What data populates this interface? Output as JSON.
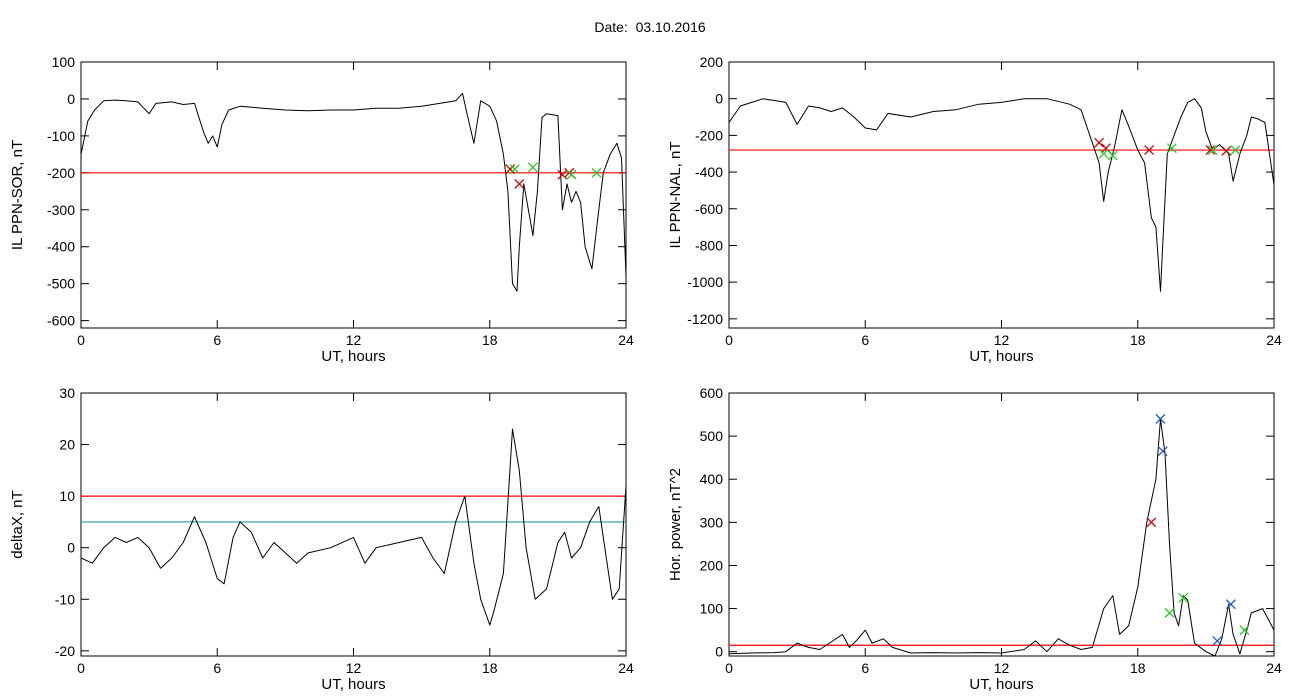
{
  "title": "Date:  03.10.2016",
  "colors": {
    "data": "#000000",
    "threshold": "#ff0000",
    "threshold2": "#2a9bb0",
    "event": "#0044cc",
    "marker_red": "#cc0000",
    "marker_green": "#22cc22",
    "marker_blue": "#2255cc"
  },
  "chart_data": [
    {
      "type": "line",
      "xlabel": "UT, hours",
      "ylabel": "IL PPN-SOR, nT",
      "xlim": [
        0,
        24
      ],
      "ylim": [
        -620,
        100
      ],
      "xticks": [
        0,
        6,
        12,
        18,
        24
      ],
      "yticks": [
        100,
        0,
        -100,
        -200,
        -300,
        -400,
        -500,
        -600
      ],
      "series": [
        {
          "x": [
            0,
            0.3,
            0.6,
            1,
            1.5,
            2,
            2.5,
            3,
            3.3,
            4,
            4.5,
            5,
            5.4,
            5.6,
            5.8,
            6,
            6.2,
            6.5,
            7,
            8,
            9,
            10,
            11,
            12,
            13,
            14,
            15,
            16,
            16.5,
            16.8,
            17,
            17.3,
            17.6,
            18,
            18.3,
            18.6,
            18.8,
            19,
            19.2,
            19.3,
            19.5,
            19.7,
            19.9,
            20.1,
            20.3,
            20.5,
            21,
            21.2,
            21.4,
            21.6,
            21.8,
            22,
            22.2,
            22.5,
            22.8,
            23,
            23.3,
            23.6,
            23.8,
            24
          ],
          "y": [
            -150,
            -60,
            -30,
            -5,
            -3,
            -5,
            -8,
            -40,
            -12,
            -8,
            -15,
            -12,
            -90,
            -120,
            -100,
            -130,
            -70,
            -30,
            -20,
            -25,
            -30,
            -32,
            -30,
            -30,
            -25,
            -25,
            -20,
            -10,
            -5,
            15,
            -40,
            -120,
            -5,
            -20,
            -60,
            -150,
            -250,
            -500,
            -520,
            -400,
            -230,
            -300,
            -370,
            -250,
            -50,
            -40,
            -45,
            -300,
            -230,
            -280,
            -250,
            -280,
            -400,
            -460,
            -300,
            -200,
            -150,
            -120,
            -160,
            -480
          ]
        }
      ],
      "thresholds": [
        {
          "y": -200,
          "color": "#ff0000"
        }
      ],
      "markers": [
        {
          "x": 18.9,
          "y": -190,
          "color": "#cc0000"
        },
        {
          "x": 19.3,
          "y": -230,
          "color": "#cc0000"
        },
        {
          "x": 19.1,
          "y": -190,
          "color": "#22cc22"
        },
        {
          "x": 19.9,
          "y": -185,
          "color": "#22cc22"
        },
        {
          "x": 21.2,
          "y": -205,
          "color": "#cc0000"
        },
        {
          "x": 21.5,
          "y": -200,
          "color": "#cc0000"
        },
        {
          "x": 21.6,
          "y": -205,
          "color": "#22cc22"
        },
        {
          "x": 22.7,
          "y": -200,
          "color": "#22cc22"
        }
      ]
    },
    {
      "type": "line",
      "xlabel": "UT, hours",
      "ylabel": "IL PPN-NAL, nT",
      "xlim": [
        0,
        24
      ],
      "ylim": [
        -1250,
        200
      ],
      "xticks": [
        0,
        6,
        12,
        18,
        24
      ],
      "yticks": [
        200,
        0,
        -200,
        -400,
        -600,
        -800,
        -1000,
        -1200
      ],
      "series": [
        {
          "x": [
            0,
            0.5,
            1,
            1.5,
            2,
            2.5,
            3,
            3.5,
            4,
            4.5,
            5,
            5.5,
            6,
            6.5,
            7,
            8,
            9,
            10,
            11,
            12,
            13,
            14,
            15,
            15.5,
            16,
            16.3,
            16.5,
            16.7,
            16.9,
            17,
            17.3,
            17.6,
            18,
            18.3,
            18.6,
            18.8,
            19,
            19.1,
            19.3,
            19.6,
            19.9,
            20.2,
            20.5,
            20.8,
            21,
            21.3,
            21.6,
            22,
            22.2,
            22.5,
            22.8,
            23,
            23.3,
            23.6,
            24
          ],
          "y": [
            -130,
            -40,
            -20,
            0,
            -10,
            -20,
            -140,
            -40,
            -50,
            -70,
            -50,
            -100,
            -160,
            -170,
            -80,
            -100,
            -70,
            -60,
            -30,
            -20,
            0,
            0,
            -30,
            -60,
            -240,
            -350,
            -560,
            -400,
            -300,
            -250,
            -60,
            -150,
            -280,
            -350,
            -650,
            -700,
            -1050,
            -800,
            -300,
            -200,
            -100,
            -20,
            0,
            -50,
            -180,
            -280,
            -250,
            -300,
            -450,
            -300,
            -200,
            -100,
            -110,
            -130,
            -470
          ]
        }
      ],
      "thresholds": [
        {
          "y": -280,
          "color": "#ff0000"
        }
      ],
      "markers": [
        {
          "x": 16.3,
          "y": -240,
          "color": "#cc0000"
        },
        {
          "x": 16.6,
          "y": -270,
          "color": "#cc0000"
        },
        {
          "x": 16.5,
          "y": -300,
          "color": "#22cc22"
        },
        {
          "x": 16.9,
          "y": -310,
          "color": "#22cc22"
        },
        {
          "x": 18.5,
          "y": -280,
          "color": "#cc0000"
        },
        {
          "x": 19.5,
          "y": -270,
          "color": "#22cc22"
        },
        {
          "x": 21.2,
          "y": -280,
          "color": "#cc0000"
        },
        {
          "x": 21.3,
          "y": -280,
          "color": "#22cc22"
        },
        {
          "x": 21.9,
          "y": -285,
          "color": "#cc0000"
        },
        {
          "x": 22.3,
          "y": -280,
          "color": "#22cc22"
        }
      ]
    },
    {
      "type": "line",
      "xlabel": "UT, hours",
      "ylabel": "deltaX, nT",
      "xlim": [
        0,
        24
      ],
      "ylim": [
        -21,
        30
      ],
      "xticks": [
        0,
        6,
        12,
        18,
        24
      ],
      "yticks": [
        30,
        20,
        10,
        0,
        -10,
        -20
      ],
      "series": [
        {
          "x": [
            0,
            0.5,
            1,
            1.5,
            2,
            2.5,
            3,
            3.5,
            4,
            4.5,
            5,
            5.5,
            6,
            6.3,
            6.7,
            7,
            7.5,
            8,
            8.5,
            9,
            9.5,
            10,
            11,
            12,
            12.5,
            13,
            14,
            15,
            15.5,
            16,
            16.5,
            16.9,
            17.3,
            17.6,
            18,
            18.2,
            18.6,
            19,
            19.3,
            19.6,
            20,
            20.5,
            21,
            21.3,
            21.6,
            22,
            22.4,
            22.8,
            23,
            23.4,
            23.7,
            24
          ],
          "y": [
            -2,
            -3,
            0,
            2,
            1,
            2,
            0,
            -4,
            -2,
            1,
            6,
            1,
            -6,
            -7,
            2,
            5,
            3,
            -2,
            1,
            -1,
            -3,
            -1,
            0,
            2,
            -3,
            0,
            1,
            2,
            -2,
            -5,
            5,
            10,
            -3,
            -10,
            -15,
            -12,
            -5,
            23,
            15,
            0,
            -10,
            -8,
            1,
            3,
            -2,
            0,
            5,
            8,
            2,
            -10,
            -8,
            12
          ]
        }
      ],
      "thresholds": [
        {
          "y": 10,
          "color": "#ff0000"
        },
        {
          "y": 5,
          "color": "#2a9bb0"
        }
      ],
      "markers": []
    },
    {
      "type": "line",
      "xlabel": "UT, hours",
      "ylabel": "Hor. power, nT^2",
      "xlim": [
        0,
        24
      ],
      "ylim": [
        -10,
        600
      ],
      "xticks": [
        0,
        6,
        12,
        18,
        24
      ],
      "yticks": [
        600,
        500,
        400,
        300,
        200,
        100,
        0
      ],
      "series": [
        {
          "x": [
            0,
            1,
            2,
            2.5,
            3,
            3.5,
            4,
            5,
            5.3,
            5.6,
            6,
            6.3,
            6.8,
            7.2,
            8,
            9,
            10,
            11,
            12,
            13,
            13.5,
            14,
            14.5,
            15,
            15.5,
            16,
            16.5,
            16.9,
            17.2,
            17.6,
            18,
            18.4,
            18.8,
            19,
            19.2,
            19.4,
            19.6,
            19.8,
            20,
            20.2,
            20.5,
            21,
            21.4,
            21.7,
            22,
            22.2,
            22.5,
            22.8,
            23,
            23.5,
            24
          ],
          "y": [
            -5,
            -3,
            -2,
            0,
            20,
            10,
            5,
            40,
            10,
            25,
            50,
            20,
            30,
            10,
            -3,
            -2,
            -3,
            -2,
            -3,
            5,
            25,
            0,
            30,
            15,
            5,
            10,
            100,
            130,
            40,
            60,
            150,
            300,
            400,
            540,
            460,
            250,
            90,
            60,
            130,
            120,
            20,
            0,
            -10,
            30,
            110,
            40,
            -5,
            50,
            90,
            100,
            50
          ]
        }
      ],
      "thresholds": [
        {
          "y": 15,
          "color": "#ff0000"
        }
      ],
      "markers": [
        {
          "x": 18.6,
          "y": 300,
          "color": "#cc0000"
        },
        {
          "x": 19.0,
          "y": 540,
          "color": "#2255cc"
        },
        {
          "x": 19.1,
          "y": 465,
          "color": "#2255cc"
        },
        {
          "x": 19.4,
          "y": 90,
          "color": "#22cc22"
        },
        {
          "x": 20.0,
          "y": 125,
          "color": "#22cc22"
        },
        {
          "x": 21.5,
          "y": 25,
          "color": "#2255cc"
        },
        {
          "x": 22.1,
          "y": 110,
          "color": "#2255cc"
        },
        {
          "x": 22.7,
          "y": 50,
          "color": "#22cc22"
        }
      ]
    }
  ]
}
